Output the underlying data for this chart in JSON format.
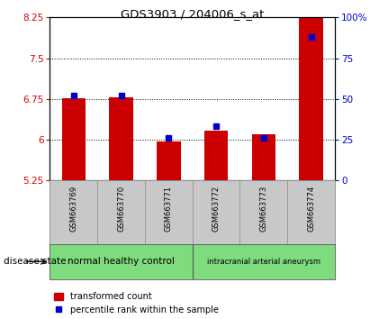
{
  "title": "GDS3903 / 204006_s_at",
  "samples": [
    "GSM663769",
    "GSM663770",
    "GSM663771",
    "GSM663772",
    "GSM663773",
    "GSM663774"
  ],
  "red_values": [
    6.76,
    6.78,
    5.96,
    6.17,
    6.09,
    8.6
  ],
  "blue_values": [
    52,
    52,
    26,
    33,
    26,
    88
  ],
  "ylim_left": [
    5.25,
    8.25
  ],
  "ylim_right": [
    0,
    100
  ],
  "yticks_left": [
    5.25,
    6.0,
    6.75,
    7.5,
    8.25
  ],
  "yticks_right": [
    0,
    25,
    50,
    75,
    100
  ],
  "ytick_labels_left": [
    "5.25",
    "6",
    "6.75",
    "7.5",
    "8.25"
  ],
  "ytick_labels_right": [
    "0",
    "25",
    "50",
    "75",
    "100%"
  ],
  "group1_label": "normal healthy control",
  "group2_label": "intracranial arterial aneurysm",
  "group1_color": "#7EDB7E",
  "group2_color": "#7EDB7E",
  "disease_state_label": "disease state",
  "legend_red_label": "transformed count",
  "legend_blue_label": "percentile rank within the sample",
  "bar_color": "#CC0000",
  "dot_color": "#0000CC",
  "bar_width": 0.5,
  "base_value": 5.25,
  "tick_bg": "#C8C8C8",
  "grid_dotted_vals": [
    6.0,
    6.75,
    7.5
  ]
}
